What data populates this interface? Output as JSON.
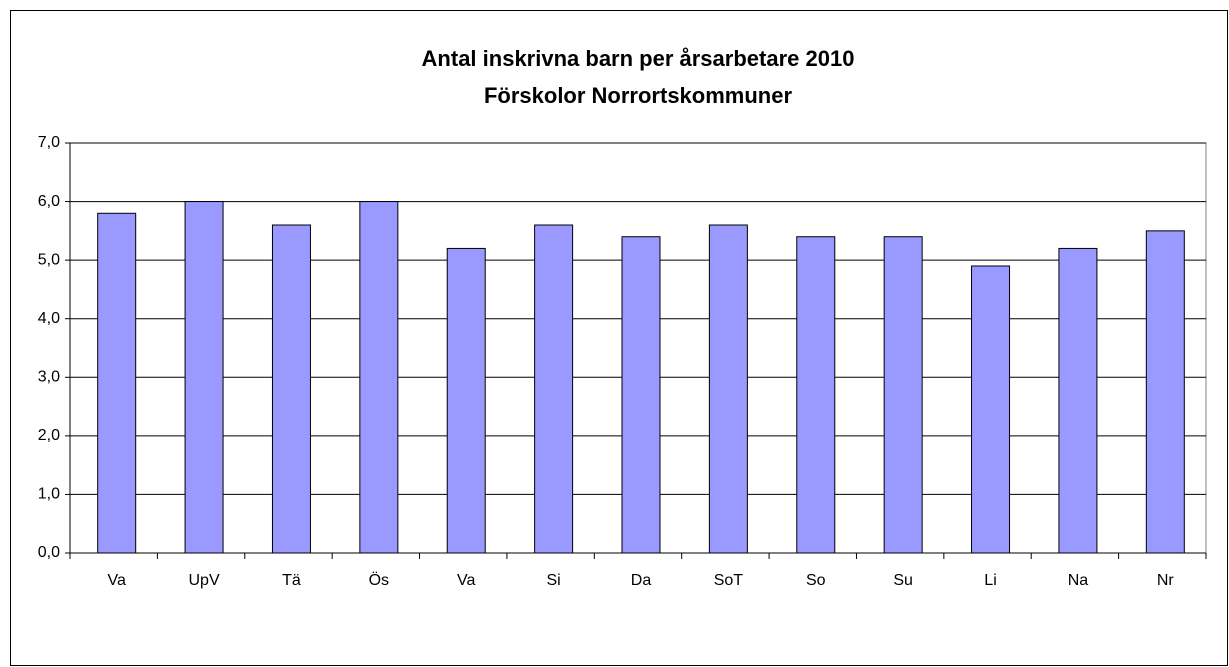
{
  "chart_data": {
    "type": "bar",
    "title": "Antal inskrivna barn per årsarbetare 2010",
    "subtitle": "Förskolor Norrortskommuner",
    "categories": [
      "Va",
      "UpV",
      "Tä",
      "Ös",
      "Va",
      "Si",
      "Da",
      "SoT",
      "So",
      "Su",
      "Li",
      "Na",
      "Nr"
    ],
    "values": [
      5.8,
      6.0,
      5.6,
      6.0,
      5.2,
      5.6,
      5.4,
      5.6,
      5.4,
      5.4,
      4.9,
      5.2,
      5.5
    ],
    "color": "#9999ff",
    "ylim": [
      0,
      7
    ],
    "yticks": [
      {
        "value": 0,
        "label": "0,0"
      },
      {
        "value": 1,
        "label": "1,0"
      },
      {
        "value": 2,
        "label": "2,0"
      },
      {
        "value": 3,
        "label": "3,0"
      },
      {
        "value": 4,
        "label": "4,0"
      },
      {
        "value": 5,
        "label": "5,0"
      },
      {
        "value": 6,
        "label": "6,0"
      },
      {
        "value": 7,
        "label": "7,0"
      }
    ],
    "grid": true
  }
}
